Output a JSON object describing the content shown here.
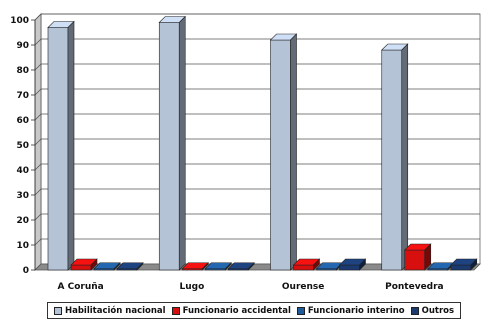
{
  "chart_data": {
    "type": "bar",
    "categories": [
      "A Coruña",
      "Lugo",
      "Ourense",
      "Pontevedra"
    ],
    "series": [
      {
        "name": "Habilitación nacional",
        "values": [
          97,
          99,
          92,
          88
        ],
        "color": "#b4c3d6"
      },
      {
        "name": "Funcionario accidental",
        "values": [
          2,
          0.5,
          2,
          8
        ],
        "color": "#d80f0f"
      },
      {
        "name": "Funcionario interino",
        "values": [
          0.5,
          0.5,
          0.5,
          0.5
        ],
        "color": "#1f5a9a"
      },
      {
        "name": "Outros",
        "values": [
          0.5,
          0.5,
          2,
          2
        ],
        "color": "#1a3a70"
      }
    ],
    "yticks": [
      "0",
      "10",
      "20",
      "30",
      "40",
      "50",
      "60",
      "70",
      "80",
      "90",
      "100"
    ],
    "ylim": [
      0,
      100
    ],
    "grid": true,
    "legend_position": "bottom",
    "title": "",
    "xlabel": "",
    "ylabel": ""
  }
}
